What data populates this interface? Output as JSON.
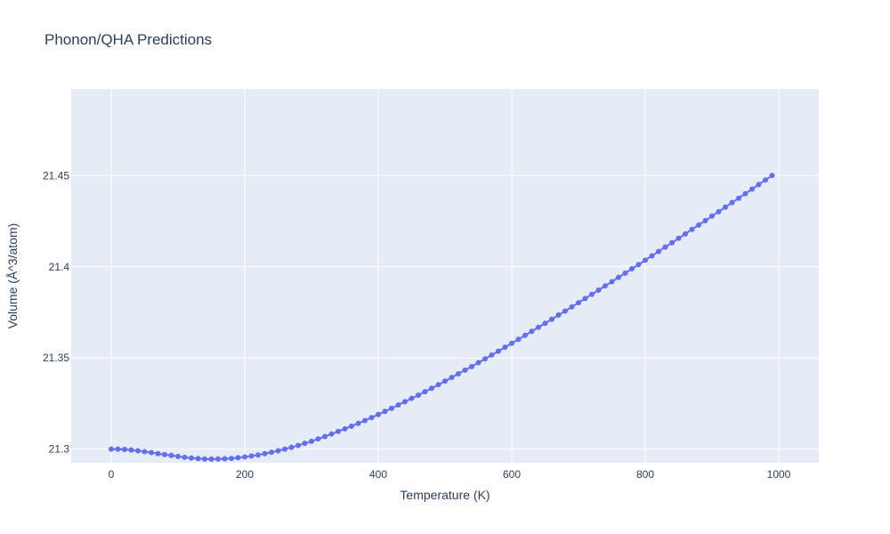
{
  "chart_data": {
    "type": "line",
    "title": "Phonon/QHA Predictions",
    "xlabel": "Temperature (K)",
    "ylabel": "Volume (Å^3/atom)",
    "xlim": [
      -60,
      1060
    ],
    "ylim": [
      21.2925,
      21.4975
    ],
    "xticks": [
      0,
      200,
      400,
      600,
      800,
      1000
    ],
    "xtick_labels": [
      "0",
      "200",
      "400",
      "600",
      "800",
      "1000"
    ],
    "yticks": [
      21.3,
      21.35,
      21.4,
      21.45
    ],
    "ytick_labels": [
      "21.3",
      "21.35",
      "21.4",
      "21.45"
    ],
    "grid": true,
    "legend": "none",
    "markers": true,
    "colors": {
      "series": "#636efa",
      "plot_bg": "#e5ecf6",
      "grid": "#ffffff",
      "text": "#2a3f5f"
    },
    "series": [
      {
        "x": [
          0,
          10,
          20,
          30,
          40,
          50,
          60,
          70,
          80,
          90,
          100,
          110,
          120,
          130,
          140,
          150,
          160,
          170,
          180,
          190,
          200,
          210,
          220,
          230,
          240,
          250,
          260,
          270,
          280,
          290,
          300,
          310,
          320,
          330,
          340,
          350,
          360,
          370,
          380,
          390,
          400,
          410,
          420,
          430,
          440,
          450,
          460,
          470,
          480,
          490,
          500,
          510,
          520,
          530,
          540,
          550,
          560,
          570,
          580,
          590,
          600,
          610,
          620,
          630,
          640,
          650,
          660,
          670,
          680,
          690,
          700,
          710,
          720,
          730,
          740,
          750,
          760,
          770,
          780,
          790,
          800,
          810,
          820,
          830,
          840,
          850,
          860,
          870,
          880,
          890,
          900,
          910,
          920,
          930,
          940,
          950,
          960,
          970,
          980,
          990
        ],
        "y": [
          21.3,
          21.3,
          21.2998,
          21.2995,
          21.2991,
          21.2986,
          21.2981,
          21.2975,
          21.297,
          21.2965,
          21.296,
          21.2955,
          21.2951,
          21.2948,
          21.2946,
          21.2945,
          21.2946,
          21.2947,
          21.2949,
          21.2953,
          21.2957,
          21.2962,
          21.2968,
          21.2975,
          21.2983,
          21.2991,
          21.3,
          21.301,
          21.302,
          21.3032,
          21.3043,
          21.3056,
          21.3069,
          21.3083,
          21.3097,
          21.3111,
          21.3126,
          21.3141,
          21.3157,
          21.3173,
          21.319,
          21.3207,
          21.3224,
          21.3242,
          21.326,
          21.3278,
          21.3296,
          21.3315,
          21.3334,
          21.3353,
          21.3373,
          21.3393,
          21.3413,
          21.3433,
          21.3453,
          21.3474,
          21.3495,
          21.3516,
          21.3537,
          21.3559,
          21.358,
          21.3602,
          21.3624,
          21.3646,
          21.3668,
          21.369,
          21.3712,
          21.3735,
          21.3757,
          21.378,
          21.3803,
          21.3826,
          21.3849,
          21.3872,
          21.3895,
          21.3918,
          21.3942,
          21.3965,
          21.3989,
          21.4012,
          21.4036,
          21.406,
          21.4084,
          21.4108,
          21.4132,
          21.4156,
          21.418,
          21.4205,
          21.4229,
          21.4253,
          21.4278,
          21.4302,
          21.4327,
          21.4352,
          21.4376,
          21.4401,
          21.4426,
          21.4451,
          21.4476,
          21.4501
        ]
      }
    ]
  }
}
